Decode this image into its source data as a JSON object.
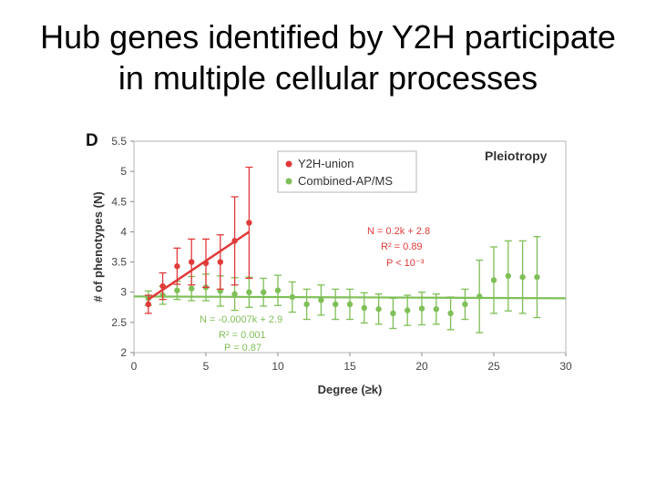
{
  "slide": {
    "title_line1": "Hub genes identified by Y2H participate",
    "title_line2": "in multiple cellular processes"
  },
  "chart_data": {
    "type": "scatter",
    "panel_label": "D",
    "annotation": "Pleiotropy",
    "xlabel": "Degree (≥k)",
    "ylabel": "# of phenotypes (N)",
    "xlim": [
      0,
      30
    ],
    "ylim": [
      2,
      5.5
    ],
    "x_ticks": [
      0,
      5,
      10,
      15,
      20,
      25,
      30
    ],
    "x_tick_labels": [
      "0",
      "5",
      "10",
      "15",
      "20",
      "25",
      "30"
    ],
    "y_ticks": [
      2,
      2.5,
      3,
      3.5,
      4,
      4.5,
      5,
      5.5
    ],
    "y_tick_labels": [
      "2",
      "2.5",
      "3",
      "3.5",
      "4",
      "4.5",
      "5",
      "5.5"
    ],
    "grid": false,
    "legend_position": "top-center",
    "colors": {
      "y2h": "#e03a3a",
      "ap": "#7fbf57"
    },
    "series": [
      {
        "name": "Y2H-union",
        "color": "#e03a3a",
        "x": [
          1,
          2,
          3,
          4,
          5,
          6,
          7,
          8
        ],
        "y": [
          2.8,
          3.1,
          3.43,
          3.5,
          3.48,
          3.5,
          3.85,
          4.15
        ],
        "err": [
          0.15,
          0.22,
          0.3,
          0.38,
          0.4,
          0.45,
          0.73,
          0.92
        ],
        "fit": {
          "x": [
            1,
            8
          ],
          "y": [
            2.88,
            4.0
          ]
        },
        "fit_label": "N = 0.2k + 2.8",
        "r2_label": "R² = 0.89",
        "p_label": "P < 10⁻³"
      },
      {
        "name": "Combined-AP/MS",
        "color": "#7fbf57",
        "x": [
          1,
          2,
          3,
          4,
          5,
          6,
          7,
          8,
          9,
          10,
          11,
          12,
          13,
          14,
          15,
          16,
          17,
          18,
          19,
          20,
          21,
          22,
          23,
          24,
          25,
          26,
          27,
          28
        ],
        "y": [
          2.9,
          2.95,
          3.03,
          3.06,
          3.08,
          3.02,
          2.97,
          3.0,
          3.0,
          3.03,
          2.92,
          2.8,
          2.87,
          2.8,
          2.8,
          2.74,
          2.72,
          2.65,
          2.7,
          2.73,
          2.72,
          2.65,
          2.8,
          2.93,
          3.2,
          3.27,
          3.25,
          3.25
        ],
        "err": [
          0.12,
          0.15,
          0.15,
          0.2,
          0.22,
          0.25,
          0.27,
          0.25,
          0.23,
          0.25,
          0.25,
          0.25,
          0.25,
          0.25,
          0.25,
          0.25,
          0.25,
          0.25,
          0.25,
          0.27,
          0.25,
          0.27,
          0.25,
          0.6,
          0.55,
          0.58,
          0.6,
          0.67
        ],
        "fit": {
          "x": [
            0,
            30
          ],
          "y": [
            2.93,
            2.9
          ]
        },
        "fit_label": "N = -0.0007k + 2.9",
        "r2_label": "R² = 0.001",
        "p_label": "P = 0.87"
      }
    ]
  }
}
